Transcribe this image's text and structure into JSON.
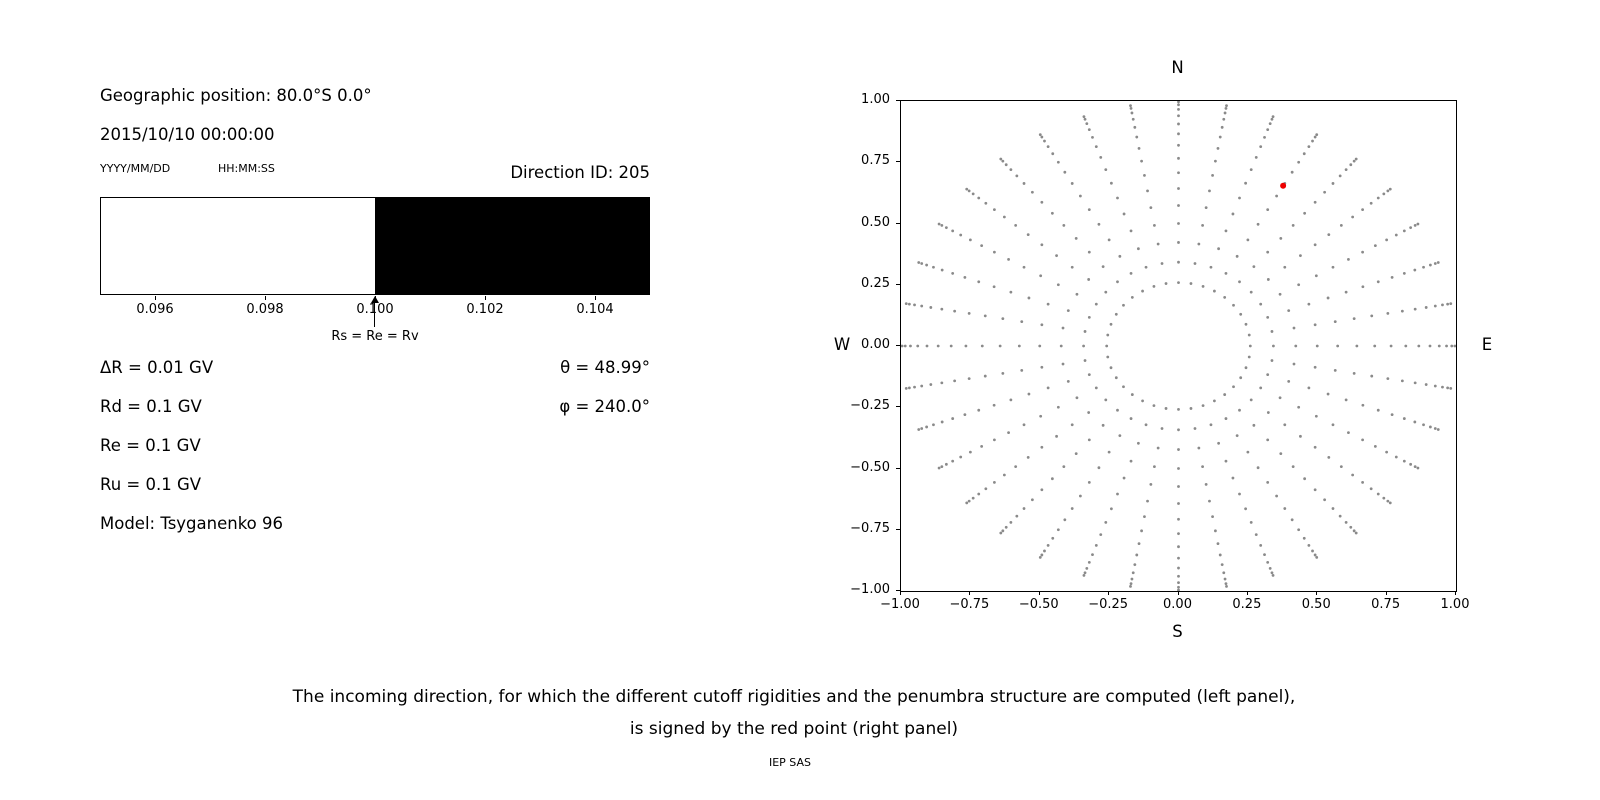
{
  "left_panel": {
    "geo_position": "Geographic position: 80.0°S 0.0°",
    "datetime": "2015/10/10 00:00:00",
    "date_format_label": "YYYY/MM/DD",
    "time_format_label": "HH:MM:SS",
    "direction_id": "Direction ID: 205",
    "params": [
      "ΔR = 0.01 GV",
      "Rd = 0.1 GV",
      "Re = 0.1 GV",
      "Ru = 0.1 GV",
      "Model: Tsyganenko 96"
    ],
    "theta": "θ = 48.99°",
    "phi": "φ = 240.0°"
  },
  "chart_data": [
    {
      "type": "bar",
      "name": "penumbra-structure",
      "x_range": [
        0.095,
        0.105
      ],
      "x_ticks": [
        0.096,
        0.098,
        0.1,
        0.102,
        0.104
      ],
      "x_tick_labels": [
        "0.096",
        "0.098",
        "0.100",
        "0.102",
        "0.104"
      ],
      "segments": [
        {
          "from": 0.095,
          "to": 0.1,
          "color": "#ffffff"
        },
        {
          "from": 0.1,
          "to": 0.105,
          "color": "#000000"
        }
      ],
      "marker": {
        "x": 0.1,
        "label": "Rs = Re = Rv"
      }
    },
    {
      "type": "scatter",
      "name": "incoming-directions",
      "xlim": [
        -1,
        1
      ],
      "ylim": [
        -1,
        1
      ],
      "x_tick_labels": [
        "−1.00",
        "−0.75",
        "−0.50",
        "−0.25",
        "0.00",
        "0.25",
        "0.50",
        "0.75",
        "1.00"
      ],
      "y_tick_labels": [
        "1.00",
        "0.75",
        "0.50",
        "0.25",
        "0.00",
        "−0.25",
        "−0.50",
        "−0.75",
        "−1.00"
      ],
      "compass": {
        "top": "N",
        "bottom": "S",
        "left": "W",
        "right": "E"
      },
      "grid_points": {
        "azimuth_start_deg": 0,
        "azimuth_step_deg": 10,
        "azimuth_count": 36,
        "zenith_deg": [
          15,
          20,
          25,
          30,
          35,
          40,
          45,
          50,
          55,
          60,
          65,
          70,
          75,
          80,
          85
        ],
        "radius_rule": "sin(zenith)"
      },
      "point_color": "#8a8a8a",
      "selected_point": {
        "x": 0.377,
        "y": 0.654,
        "theta_deg": 48.99,
        "phi_deg": 240.0,
        "color": "#ee0000"
      }
    }
  ],
  "caption": {
    "line1": "The incoming direction, for which the different cutoff rigidities and the penumbra structure are computed (left panel),",
    "line2": "is signed by the red point (right panel)",
    "credit": "IEP SAS"
  }
}
